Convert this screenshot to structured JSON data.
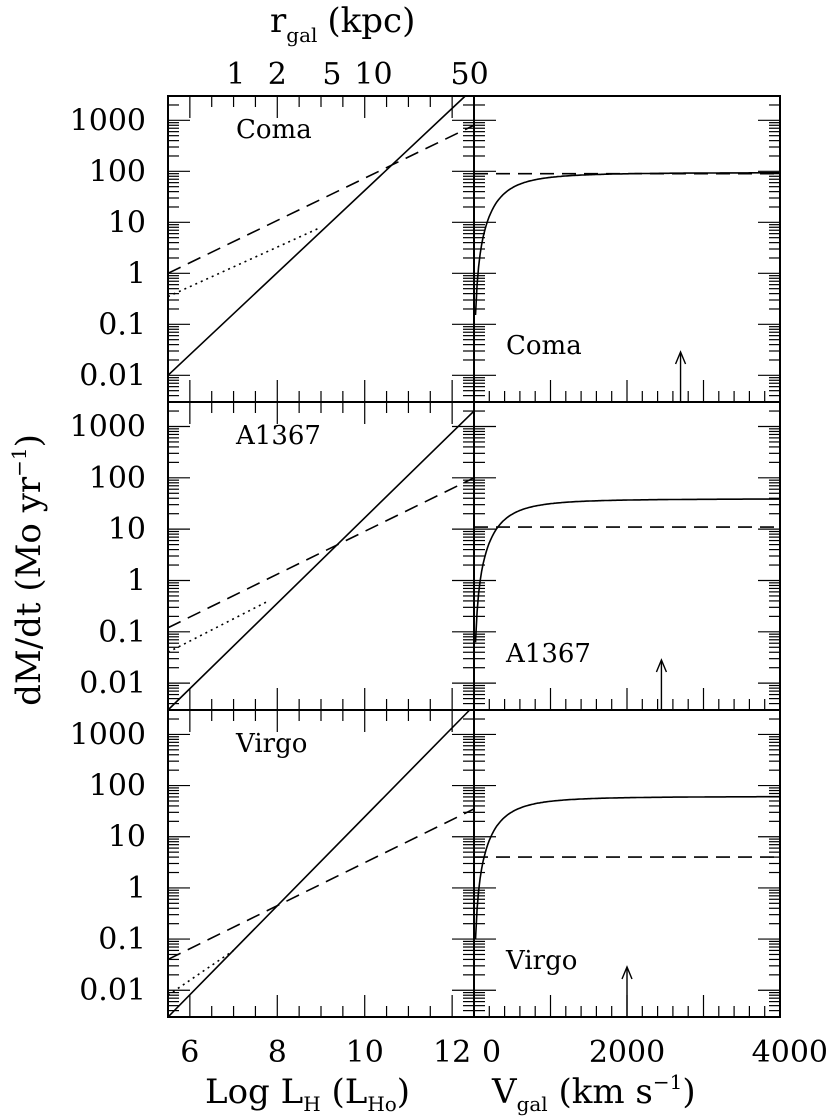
{
  "chart_data": {
    "type": "line",
    "top_axis": {
      "label": "r",
      "label_sub": "gal",
      "label_unit": "(kpc)",
      "ticks": [
        {
          "text": "1",
          "x": 7.05
        },
        {
          "text": "2",
          "x": 8.0
        },
        {
          "text": "5",
          "x": 9.25
        },
        {
          "text": "10",
          "x": 10.2
        },
        {
          "text": "50",
          "x": 12.4
        }
      ]
    },
    "x_left": {
      "label_main": "Log L",
      "label_sub": "H",
      "label_unit_open": " (L",
      "label_unit_sub": "Ho",
      "label_unit_close": ")",
      "range": [
        5.5,
        12.5
      ],
      "tick_labels": [
        "6",
        "8",
        "10",
        "12"
      ]
    },
    "x_right": {
      "label_main": "V",
      "label_sub": "gal",
      "label_unit": " (km s",
      "label_sup": "−1",
      "label_close": ")",
      "range": [
        0,
        4000
      ],
      "tick_labels": [
        "0",
        "2000",
        "4000"
      ]
    },
    "y": {
      "label_main": "dM/dt (Mo yr",
      "label_sup": "−1",
      "label_close": ")",
      "scale": "log",
      "range": [
        0.003,
        3000
      ],
      "tick_labels": [
        "1000",
        "100",
        "10",
        "1",
        "0.1",
        "0.01"
      ]
    },
    "rows": [
      {
        "cluster": "Coma",
        "left": {
          "solid": {
            "x": [
              5.5,
              12.3
            ],
            "y": [
              0.01,
              3000
            ]
          },
          "dashed": {
            "x": [
              5.5,
              12.5
            ],
            "y": [
              1,
              800
            ]
          },
          "dotted": {
            "x": [
              5.5,
              9.0
            ],
            "y": [
              0.35,
              8
            ]
          }
        },
        "right": {
          "curve_max": 85,
          "dashed_level": 90,
          "arrow_v": 2700
        }
      },
      {
        "cluster": "A1367",
        "left": {
          "solid": {
            "x": [
              5.5,
              12.5
            ],
            "y": [
              0.003,
              2000
            ]
          },
          "dashed": {
            "x": [
              5.5,
              12.5
            ],
            "y": [
              0.12,
              100
            ]
          },
          "dotted": {
            "x": [
              5.5,
              7.8
            ],
            "y": [
              0.04,
              0.4
            ]
          }
        },
        "right": {
          "curve_max": 35,
          "dashed_level": 11,
          "arrow_v": 2450
        }
      },
      {
        "cluster": "Virgo",
        "left": {
          "solid": {
            "x": [
              5.5,
              12.4
            ],
            "y": [
              0.003,
              3000
            ]
          },
          "dashed": {
            "x": [
              5.5,
              12.5
            ],
            "y": [
              0.04,
              35
            ]
          },
          "dotted": {
            "x": [
              5.5,
              7.0
            ],
            "y": [
              0.008,
              0.06
            ]
          }
        },
        "right": {
          "curve_max": 55,
          "dashed_level": 4,
          "arrow_v": 2000
        }
      }
    ]
  }
}
